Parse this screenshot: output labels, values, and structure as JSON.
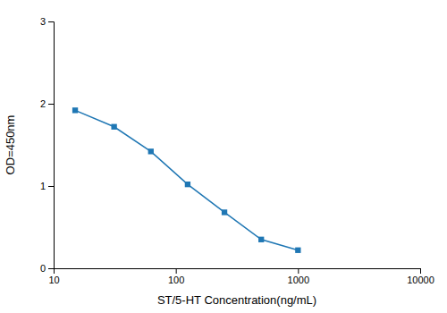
{
  "chart_data": {
    "type": "line",
    "x": [
      15,
      31.25,
      62.5,
      125,
      250,
      500,
      1000
    ],
    "values": [
      1.92,
      1.72,
      1.42,
      1.02,
      0.68,
      0.35,
      0.22
    ],
    "xlabel": "ST/5-HT Concentration(ng/mL)",
    "ylabel": "OD=450nm",
    "log": "x",
    "xlim": [
      10,
      10000
    ],
    "ylim": [
      0,
      3
    ],
    "xticks": [
      10,
      100,
      1000,
      10000
    ],
    "yticks": [
      0,
      1,
      2,
      3
    ],
    "marker": "square"
  }
}
